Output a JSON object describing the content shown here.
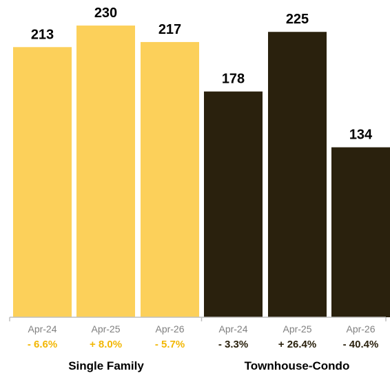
{
  "chart_data": {
    "type": "bar",
    "title": "",
    "xlabel": "",
    "ylabel": "",
    "ylim": [
      0,
      236
    ],
    "grid": false,
    "colors": {
      "single_family": "#FCD05A",
      "townhouse_condo": "#2A210D",
      "axis": "#BFBFBF",
      "tick_label": "#7F7F7F",
      "value_label": "#000000"
    },
    "groups": [
      {
        "name": "Single Family",
        "color_key": "single_family",
        "bars": [
          {
            "category": "Apr-24",
            "value": 213,
            "change": "- 6.6%"
          },
          {
            "category": "Apr-25",
            "value": 230,
            "change": "+ 8.0%"
          },
          {
            "category": "Apr-26",
            "value": 217,
            "change": "- 5.7%"
          }
        ]
      },
      {
        "name": "Townhouse-Condo",
        "color_key": "townhouse_condo",
        "bars": [
          {
            "category": "Apr-24",
            "value": 178,
            "change": "- 3.3%"
          },
          {
            "category": "Apr-25",
            "value": 225,
            "change": "+ 26.4%"
          },
          {
            "category": "Apr-26",
            "value": 134,
            "change": "- 40.4%"
          }
        ]
      }
    ]
  }
}
